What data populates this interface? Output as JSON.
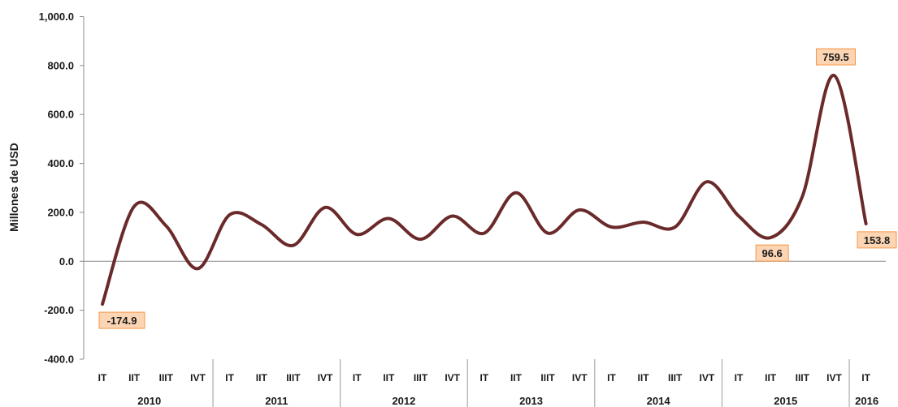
{
  "chart_data": {
    "type": "line",
    "ylabel": "Millones de USD",
    "xlabel": "",
    "title": "",
    "ylim": [
      -400,
      1000
    ],
    "yticks": [
      1000,
      800,
      600,
      400,
      200,
      0,
      -200,
      -400
    ],
    "ytick_labels": [
      "1,000.0",
      "800.0",
      "600.0",
      "400.0",
      "200.0",
      "0.0",
      "-200.0",
      "-400.0"
    ],
    "categories": [
      "IT",
      "IIT",
      "IIIT",
      "IVT",
      "IT",
      "IIT",
      "IIIT",
      "IVT",
      "IT",
      "IIT",
      "IIIT",
      "IVT",
      "IT",
      "IIT",
      "IIIT",
      "IVT",
      "IT",
      "IIT",
      "IIIT",
      "IVT",
      "IT",
      "IIT",
      "IIIT",
      "IVT",
      "IT"
    ],
    "years": [
      {
        "label": "2010",
        "start": 0,
        "count": 4
      },
      {
        "label": "2011",
        "start": 4,
        "count": 4
      },
      {
        "label": "2012",
        "start": 8,
        "count": 4
      },
      {
        "label": "2013",
        "start": 12,
        "count": 4
      },
      {
        "label": "2014",
        "start": 16,
        "count": 4
      },
      {
        "label": "2015",
        "start": 20,
        "count": 4
      },
      {
        "label": "2016",
        "start": 24,
        "count": 1
      }
    ],
    "series": [
      {
        "values": [
          -174.9,
          225,
          145,
          -30,
          190,
          150,
          65,
          220,
          110,
          175,
          90,
          185,
          115,
          280,
          115,
          210,
          140,
          160,
          140,
          325,
          185,
          96.6,
          265,
          759.5,
          153.8
        ],
        "color": "#6b2a2a"
      }
    ],
    "data_labels": [
      {
        "index": 0,
        "text": "-174.9"
      },
      {
        "index": 21,
        "text": "96.6"
      },
      {
        "index": 23,
        "text": "759.5"
      },
      {
        "index": 24,
        "text": "153.8"
      }
    ],
    "label_fill": "#fcd5b4",
    "label_stroke": "#f79646",
    "grid": false,
    "legend": "none"
  }
}
